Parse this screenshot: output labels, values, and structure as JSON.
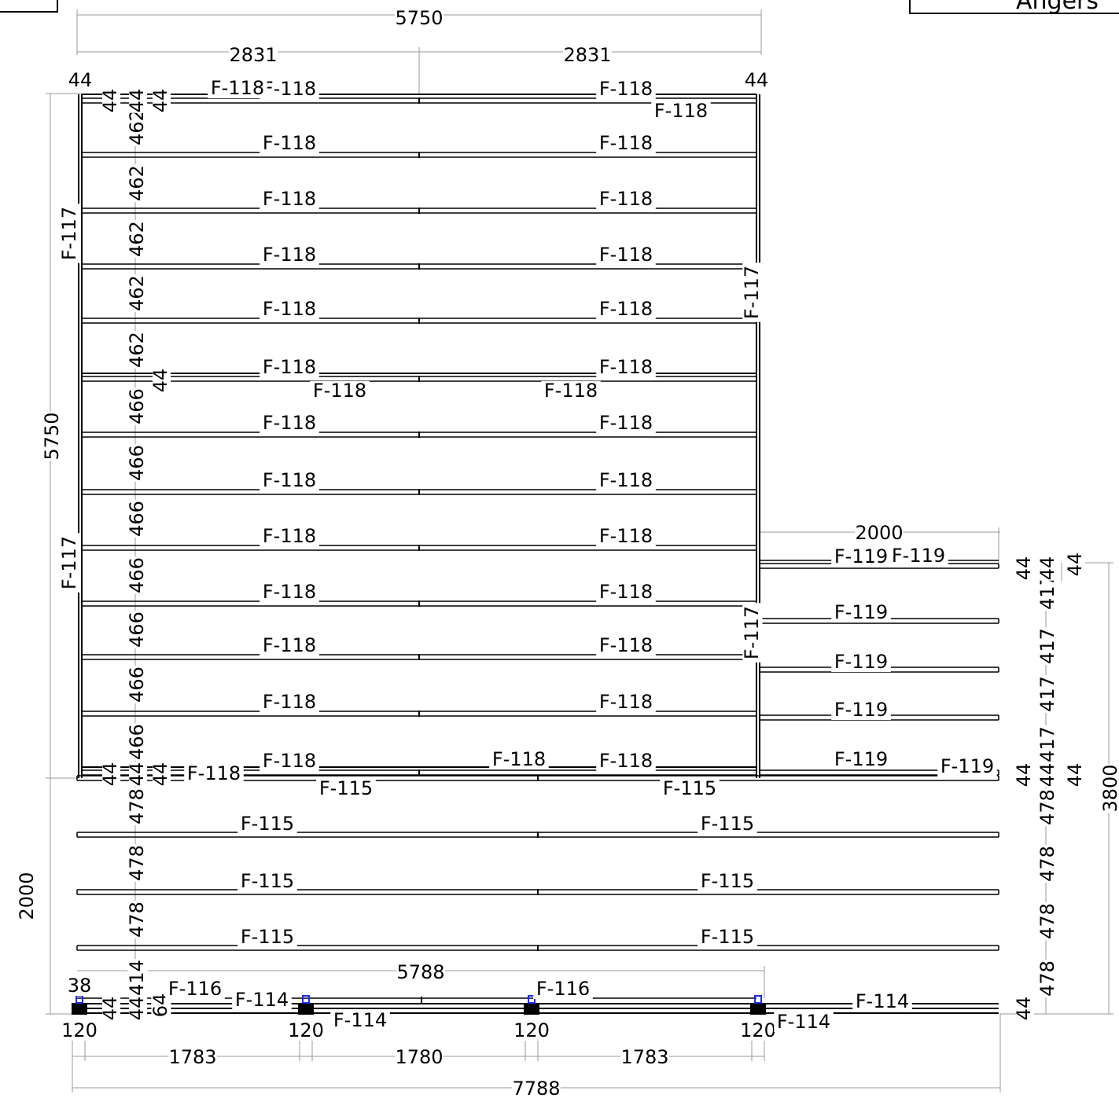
{
  "title_block": {
    "text": "Angers"
  },
  "colors": {
    "line": "#000000",
    "dim": "#9a9a9a",
    "anchor": "#1f2bd9"
  },
  "overall": {
    "upper_width": "5750",
    "upper_height": "5750",
    "lower_height": "2000",
    "total_width": "7788",
    "right_height": "3800",
    "right_ext_width": "2000",
    "bottom_span": "5788"
  },
  "top_dims": {
    "half_a": "2831",
    "half_b": "2831",
    "edge_left": "44",
    "edge_right": "44"
  },
  "spacing": {
    "upper_a": "462",
    "upper_b": "466",
    "edge": "44",
    "lower": "478",
    "right_side": "417",
    "bottom_a": "414",
    "bottom_b": "38",
    "bottom_c": "64"
  },
  "bottom_dims": {
    "bay_a": "1783",
    "bay_b": "1780",
    "bay_c": "1783",
    "post": "120"
  },
  "parts": {
    "p114": "F-114",
    "p115": "F-115",
    "p116": "F-116",
    "p117": "F-117",
    "p118": "F-118",
    "p119": "F-119"
  }
}
